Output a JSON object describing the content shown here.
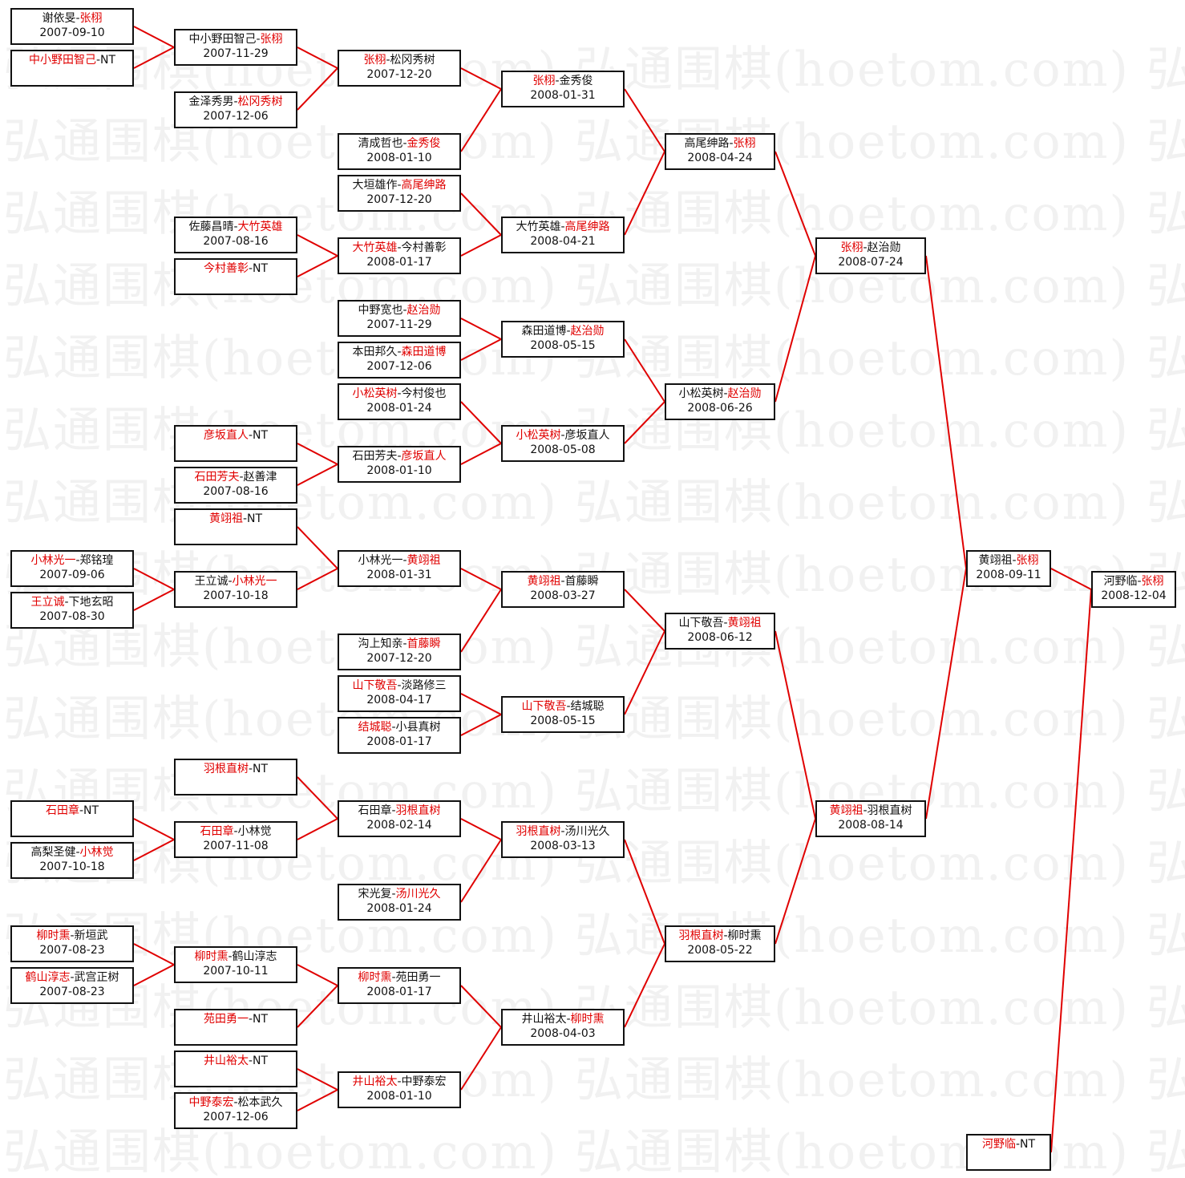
{
  "watermark": "弘通围棋(hoetom.com)",
  "colors": {
    "winner": "#e00000",
    "line": "#e00000",
    "border": "#111111",
    "text": "#111111"
  },
  "rounds": [
    [
      {
        "a": "谢依旻",
        "b": "张栩",
        "winner": "b",
        "date": "2007-09-10"
      },
      {
        "a": "中小野田智己",
        "b": "NT",
        "winner": "a",
        "date": ""
      },
      {
        "a": "小林光一",
        "b": "郑铭瑝",
        "winner": "a",
        "date": "2007-09-06"
      },
      {
        "a": "王立诚",
        "b": "下地玄昭",
        "winner": "a",
        "date": "2007-08-30"
      },
      {
        "a": "石田章",
        "b": "NT",
        "winner": "a",
        "date": ""
      },
      {
        "a": "高梨圣健",
        "b": "小林觉",
        "winner": "b",
        "date": "2007-10-18"
      },
      {
        "a": "柳时熏",
        "b": "新垣武",
        "winner": "a",
        "date": "2007-08-23"
      },
      {
        "a": "鹤山淳志",
        "b": "武宫正树",
        "winner": "a",
        "date": "2007-08-23"
      }
    ],
    [
      {
        "a": "中小野田智己",
        "b": "张栩",
        "winner": "b",
        "date": "2007-11-29",
        "from": [
          0,
          1
        ]
      },
      {
        "a": "金泽秀男",
        "b": "松冈秀树",
        "winner": "b",
        "date": "2007-12-06"
      },
      {
        "a": "佐藤昌晴",
        "b": "大竹英雄",
        "winner": "b",
        "date": "2007-08-16"
      },
      {
        "a": "今村善彰",
        "b": "NT",
        "winner": "a",
        "date": ""
      },
      {
        "a": "彦坂直人",
        "b": "NT",
        "winner": "a",
        "date": ""
      },
      {
        "a": "石田芳夫",
        "b": "赵善津",
        "winner": "a",
        "date": "2007-08-16"
      },
      {
        "a": "黄翊祖",
        "b": "NT",
        "winner": "a",
        "date": ""
      },
      {
        "a": "王立诚",
        "b": "小林光一",
        "winner": "b",
        "date": "2007-10-18",
        "from": [
          2,
          3
        ]
      },
      {
        "a": "羽根直树",
        "b": "NT",
        "winner": "a",
        "date": ""
      },
      {
        "a": "石田章",
        "b": "小林觉",
        "winner": "a",
        "date": "2007-11-08",
        "from": [
          4,
          5
        ]
      },
      {
        "a": "柳时熏",
        "b": "鹤山淳志",
        "winner": "a",
        "date": "2007-10-11",
        "from": [
          6,
          7
        ]
      },
      {
        "a": "苑田勇一",
        "b": "NT",
        "winner": "a",
        "date": ""
      },
      {
        "a": "井山裕太",
        "b": "NT",
        "winner": "a",
        "date": ""
      },
      {
        "a": "中野泰宏",
        "b": "松本武久",
        "winner": "a",
        "date": "2007-12-06"
      }
    ],
    [
      {
        "a": "张栩",
        "b": "松冈秀树",
        "winner": "a",
        "date": "2007-12-20",
        "from": [
          0,
          1
        ]
      },
      {
        "a": "清成哲也",
        "b": "金秀俊",
        "winner": "b",
        "date": "2008-01-10"
      },
      {
        "a": "大垣雄作",
        "b": "高尾绅路",
        "winner": "b",
        "date": "2007-12-20"
      },
      {
        "a": "大竹英雄",
        "b": "今村善彰",
        "winner": "a",
        "date": "2008-01-17",
        "from": [
          2,
          3
        ]
      },
      {
        "a": "中野宽也",
        "b": "赵治勋",
        "winner": "b",
        "date": "2007-11-29"
      },
      {
        "a": "本田邦久",
        "b": "森田道博",
        "winner": "b",
        "date": "2007-12-06"
      },
      {
        "a": "小松英树",
        "b": "今村俊也",
        "winner": "a",
        "date": "2008-01-24"
      },
      {
        "a": "石田芳夫",
        "b": "彦坂直人",
        "winner": "b",
        "date": "2008-01-10",
        "from": [
          4,
          5
        ]
      },
      {
        "a": "小林光一",
        "b": "黄翊祖",
        "winner": "b",
        "date": "2008-01-31",
        "from": [
          6,
          7
        ]
      },
      {
        "a": "沟上知亲",
        "b": "首藤瞬",
        "winner": "b",
        "date": "2007-12-20"
      },
      {
        "a": "山下敬吾",
        "b": "淡路修三",
        "winner": "a",
        "date": "2008-04-17"
      },
      {
        "a": "结城聪",
        "b": "小县真树",
        "winner": "a",
        "date": "2008-01-17"
      },
      {
        "a": "石田章",
        "b": "羽根直树",
        "winner": "b",
        "date": "2008-02-14",
        "from": [
          8,
          9
        ]
      },
      {
        "a": "宋光复",
        "b": "汤川光久",
        "winner": "b",
        "date": "2008-01-24"
      },
      {
        "a": "柳时熏",
        "b": "苑田勇一",
        "winner": "a",
        "date": "2008-01-17",
        "from": [
          10,
          11
        ]
      },
      {
        "a": "井山裕太",
        "b": "中野泰宏",
        "winner": "a",
        "date": "2008-01-10",
        "from": [
          12,
          13
        ]
      }
    ],
    [
      {
        "a": "张栩",
        "b": "金秀俊",
        "winner": "a",
        "date": "2008-01-31",
        "from": [
          0,
          1
        ]
      },
      {
        "a": "大竹英雄",
        "b": "高尾绅路",
        "winner": "b",
        "date": "2008-04-21",
        "from": [
          2,
          3
        ]
      },
      {
        "a": "森田道博",
        "b": "赵治勋",
        "winner": "b",
        "date": "2008-05-15",
        "from": [
          4,
          5
        ]
      },
      {
        "a": "小松英树",
        "b": "彦坂直人",
        "winner": "a",
        "date": "2008-05-08",
        "from": [
          6,
          7
        ]
      },
      {
        "a": "黄翊祖",
        "b": "首藤瞬",
        "winner": "a",
        "date": "2008-03-27",
        "from": [
          8,
          9
        ]
      },
      {
        "a": "山下敬吾",
        "b": "结城聪",
        "winner": "a",
        "date": "2008-05-15",
        "from": [
          10,
          11
        ]
      },
      {
        "a": "羽根直树",
        "b": "汤川光久",
        "winner": "a",
        "date": "2008-03-13",
        "from": [
          12,
          13
        ]
      },
      {
        "a": "井山裕太",
        "b": "柳时熏",
        "winner": "b",
        "date": "2008-04-03",
        "from": [
          14,
          15
        ]
      }
    ],
    [
      {
        "a": "高尾绅路",
        "b": "张栩",
        "winner": "b",
        "date": "2008-04-24",
        "from": [
          0,
          1
        ]
      },
      {
        "a": "小松英树",
        "b": "赵治勋",
        "winner": "b",
        "date": "2008-06-26",
        "from": [
          2,
          3
        ]
      },
      {
        "a": "山下敬吾",
        "b": "黄翊祖",
        "winner": "b",
        "date": "2008-06-12",
        "from": [
          4,
          5
        ]
      },
      {
        "a": "羽根直树",
        "b": "柳时熏",
        "winner": "a",
        "date": "2008-05-22",
        "from": [
          6,
          7
        ]
      }
    ],
    [
      {
        "a": "张栩",
        "b": "赵治勋",
        "winner": "a",
        "date": "2008-07-24",
        "from": [
          0,
          1
        ]
      },
      {
        "a": "黄翊祖",
        "b": "羽根直树",
        "winner": "a",
        "date": "2008-08-14",
        "from": [
          2,
          3
        ]
      }
    ],
    [
      {
        "a": "黄翊祖",
        "b": "张栩",
        "winner": "b",
        "date": "2008-09-11",
        "from": [
          0,
          1
        ]
      },
      {
        "a": "河野临",
        "b": "NT",
        "winner": "a",
        "date": ""
      }
    ],
    [
      {
        "a": "河野临",
        "b": "张栩",
        "winner": "b",
        "date": "2008-12-04",
        "from": [
          0,
          1
        ]
      }
    ]
  ]
}
